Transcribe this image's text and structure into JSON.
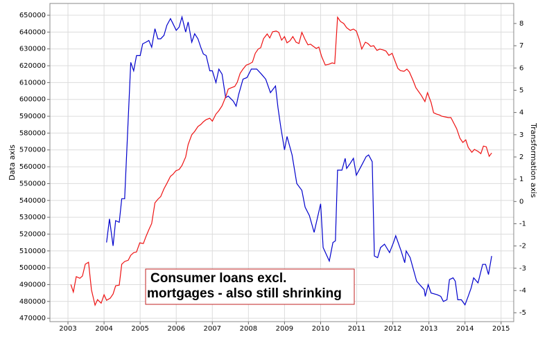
{
  "chart_data": {
    "type": "line",
    "ylabel": "Data axis",
    "y2label": "Transformation axis",
    "annotation": [
      "Consumer loans excl.",
      "mortgages - also still shrinking"
    ],
    "xlim": [
      2002.5,
      2015.35
    ],
    "xticks": [
      2003,
      2004,
      2005,
      2006,
      2007,
      2008,
      2009,
      2010,
      2011,
      2012,
      2013,
      2014,
      2015
    ],
    "ylim": [
      468000,
      657000
    ],
    "yticks": [
      470000,
      480000,
      490000,
      500000,
      510000,
      520000,
      530000,
      540000,
      550000,
      560000,
      570000,
      580000,
      590000,
      600000,
      610000,
      620000,
      630000,
      640000,
      650000
    ],
    "y2lim": [
      -5.4,
      8.9
    ],
    "y2ticks": [
      -5,
      -4,
      -3,
      -2,
      -1,
      0,
      1,
      2,
      3,
      4,
      5,
      6,
      7,
      8
    ],
    "grid": true,
    "series": [
      {
        "color": "#0000cc",
        "axis": "y",
        "x": [
          2004.07,
          2004.15,
          2004.25,
          2004.32,
          2004.42,
          2004.49,
          2004.57,
          2004.74,
          2004.82,
          2004.9,
          2005.0,
          2005.07,
          2005.16,
          2005.24,
          2005.32,
          2005.41,
          2005.49,
          2005.57,
          2005.66,
          2005.74,
          2005.84,
          2005.91,
          2006.0,
          2006.08,
          2006.16,
          2006.26,
          2006.33,
          2006.43,
          2006.51,
          2006.6,
          2006.68,
          2006.75,
          2006.83,
          2006.93,
          2007.0,
          2007.1,
          2007.18,
          2007.27,
          2007.37,
          2007.44,
          2007.58,
          2007.66,
          2007.73,
          2007.85,
          2007.96,
          2008.08,
          2008.23,
          2008.36,
          2008.48,
          2008.61,
          2008.75,
          2008.82,
          2008.9,
          2009.0,
          2009.07,
          2009.21,
          2009.34,
          2009.48,
          2009.57,
          2009.69,
          2009.82,
          2010.0,
          2010.07,
          2010.24,
          2010.34,
          2010.41,
          2010.47,
          2010.59,
          2010.68,
          2010.72,
          2010.82,
          2010.91,
          2010.99,
          2011.14,
          2011.26,
          2011.33,
          2011.43,
          2011.49,
          2011.58,
          2011.66,
          2011.77,
          2011.91,
          2012.02,
          2012.08,
          2012.23,
          2012.33,
          2012.37,
          2012.48,
          2012.66,
          2012.87,
          2012.9,
          2012.98,
          2013.06,
          2013.23,
          2013.33,
          2013.4,
          2013.5,
          2013.57,
          2013.67,
          2013.73,
          2013.8,
          2013.9,
          2014.0,
          2014.07,
          2014.17,
          2014.24,
          2014.36,
          2014.49,
          2014.57,
          2014.65,
          2014.74
        ],
        "values": [
          515000,
          529000,
          513000,
          528000,
          527000,
          541000,
          541000,
          622000,
          617000,
          626000,
          626000,
          633000,
          634000,
          635000,
          631000,
          642000,
          636000,
          636000,
          638000,
          644000,
          648000,
          645000,
          641000,
          643000,
          649000,
          640000,
          646000,
          634000,
          639000,
          636000,
          631000,
          627000,
          626000,
          617000,
          617000,
          610000,
          618000,
          615000,
          601000,
          602000,
          599000,
          596000,
          603000,
          612000,
          613000,
          618000,
          618000,
          615000,
          612000,
          604000,
          608000,
          595000,
          583000,
          570000,
          578000,
          567000,
          550000,
          546000,
          536000,
          531000,
          521000,
          538000,
          512000,
          504000,
          515000,
          516000,
          558000,
          558000,
          565000,
          559000,
          562000,
          565000,
          555000,
          561000,
          566000,
          567000,
          563000,
          507000,
          506000,
          512000,
          514000,
          509000,
          515000,
          519000,
          510000,
          503000,
          510000,
          506000,
          492000,
          487000,
          483000,
          490000,
          485000,
          484000,
          483000,
          480000,
          481000,
          493000,
          494000,
          492000,
          481000,
          481000,
          478000,
          482000,
          488000,
          494000,
          491000,
          502000,
          502000,
          496000,
          507000
        ]
      },
      {
        "color": "#ee1111",
        "axis": "y2",
        "x": [
          2003.08,
          2003.15,
          2003.23,
          2003.33,
          2003.4,
          2003.48,
          2003.57,
          2003.65,
          2003.75,
          2003.82,
          2003.92,
          2004.0,
          2004.07,
          2004.17,
          2004.25,
          2004.32,
          2004.42,
          2004.49,
          2004.57,
          2004.67,
          2004.74,
          2004.82,
          2004.9,
          2004.99,
          2005.09,
          2005.16,
          2005.24,
          2005.32,
          2005.41,
          2005.49,
          2005.57,
          2005.66,
          2005.74,
          2005.84,
          2005.91,
          2005.99,
          2006.08,
          2006.16,
          2006.26,
          2006.33,
          2006.43,
          2006.51,
          2006.6,
          2006.68,
          2006.75,
          2006.83,
          2006.93,
          2007.0,
          2007.1,
          2007.18,
          2007.27,
          2007.37,
          2007.44,
          2007.52,
          2007.62,
          2007.69,
          2007.77,
          2007.85,
          2007.94,
          2008.0,
          2008.11,
          2008.19,
          2008.27,
          2008.34,
          2008.42,
          2008.52,
          2008.59,
          2008.67,
          2008.77,
          2008.84,
          2008.92,
          2009.0,
          2009.07,
          2009.15,
          2009.23,
          2009.32,
          2009.4,
          2009.48,
          2009.57,
          2009.65,
          2009.72,
          2009.8,
          2009.88,
          2009.95,
          2010.03,
          2010.13,
          2010.22,
          2010.32,
          2010.39,
          2010.47,
          2010.55,
          2010.64,
          2010.72,
          2010.82,
          2010.91,
          2010.99,
          2011.07,
          2011.14,
          2011.24,
          2011.31,
          2011.39,
          2011.47,
          2011.56,
          2011.64,
          2011.72,
          2011.81,
          2011.89,
          2011.98,
          2012.06,
          2012.14,
          2012.21,
          2012.31,
          2012.39,
          2012.46,
          2012.56,
          2012.64,
          2012.71,
          2012.79,
          2012.89,
          2012.96,
          2013.06,
          2013.13,
          2013.21,
          2013.29,
          2013.36,
          2013.46,
          2013.54,
          2013.61,
          2013.69,
          2013.77,
          2013.86,
          2013.94,
          2014.02,
          2014.09,
          2014.19,
          2014.26,
          2014.36,
          2014.44,
          2014.51,
          2014.59,
          2014.67,
          2014.74
        ],
        "values": [
          -3.73,
          -4.07,
          -3.38,
          -3.45,
          -3.35,
          -2.82,
          -2.73,
          -3.97,
          -4.66,
          -4.41,
          -4.57,
          -4.19,
          -4.44,
          -4.35,
          -4.16,
          -3.79,
          -3.76,
          -2.82,
          -2.7,
          -2.64,
          -2.42,
          -2.3,
          -2.27,
          -1.86,
          -1.89,
          -1.58,
          -1.27,
          -0.99,
          -0.06,
          0.1,
          0.22,
          0.57,
          0.81,
          1.13,
          1.22,
          1.38,
          1.44,
          1.62,
          2.0,
          2.56,
          3.0,
          3.15,
          3.37,
          3.46,
          3.58,
          3.68,
          3.74,
          3.61,
          3.93,
          4.08,
          4.3,
          4.7,
          5.05,
          5.11,
          5.17,
          5.36,
          5.76,
          5.95,
          6.13,
          6.16,
          6.26,
          6.66,
          6.85,
          6.91,
          7.32,
          7.53,
          7.35,
          7.63,
          7.66,
          7.6,
          7.25,
          7.41,
          7.13,
          7.22,
          7.41,
          7.16,
          7.1,
          7.6,
          7.28,
          7.04,
          7.07,
          6.97,
          6.88,
          6.94,
          6.51,
          6.13,
          6.16,
          6.23,
          6.2,
          8.28,
          8.09,
          8.0,
          7.81,
          7.69,
          7.75,
          7.66,
          7.28,
          6.85,
          7.16,
          7.1,
          6.97,
          7.0,
          6.79,
          6.85,
          6.82,
          6.76,
          6.57,
          6.66,
          6.32,
          5.98,
          5.88,
          5.85,
          5.95,
          5.82,
          5.45,
          5.11,
          4.95,
          4.77,
          4.49,
          4.89,
          4.45,
          3.99,
          3.93,
          3.89,
          3.83,
          3.8,
          3.77,
          3.77,
          3.52,
          3.27,
          2.84,
          2.65,
          2.77,
          2.43,
          2.21,
          2.34,
          2.25,
          2.15,
          2.49,
          2.46,
          2.03,
          2.18
        ]
      }
    ]
  }
}
